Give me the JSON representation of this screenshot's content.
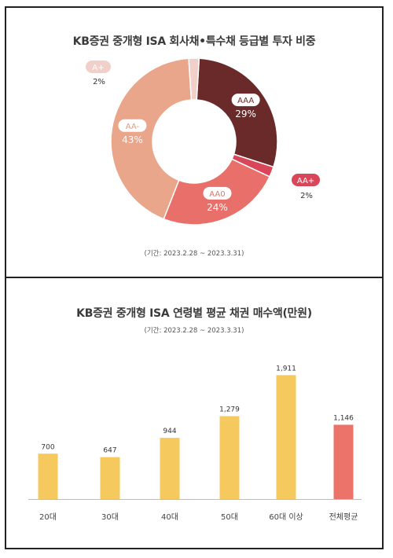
{
  "chart_data": [
    {
      "type": "pie",
      "title": "KB증권 중개형 ISA 회사채•특수채 등급별 투자 비중",
      "period": "(기간: 2023.2.28 ~ 2023.3.31)",
      "categories": [
        "AAA",
        "AA+",
        "AA0",
        "AA-",
        "A+"
      ],
      "values": [
        29,
        2,
        24,
        43,
        2
      ],
      "value_labels": [
        "29%",
        "2%",
        "24%",
        "43%",
        "2%"
      ],
      "colors": [
        "#6b2a2a",
        "#d9465a",
        "#e9706a",
        "#eaa68a",
        "#f0d0c8"
      ]
    },
    {
      "type": "bar",
      "title": "KB증권 중개형 ISA 연령별 평균 채권 매수액(만원)",
      "period": "(기간: 2023.2.28 ~ 2023.3.31)",
      "categories": [
        "20대",
        "30대",
        "40대",
        "50대",
        "60대 이상",
        "전체평균"
      ],
      "values": [
        700,
        647,
        944,
        1279,
        1911,
        1146
      ],
      "value_labels": [
        "700",
        "647",
        "944",
        "1,279",
        "1,911",
        "1,146"
      ],
      "colors": [
        "#f5c95e",
        "#f5c95e",
        "#f5c95e",
        "#f5c95e",
        "#f5c95e",
        "#ec736a"
      ],
      "ylim": [
        0,
        2000
      ]
    }
  ]
}
